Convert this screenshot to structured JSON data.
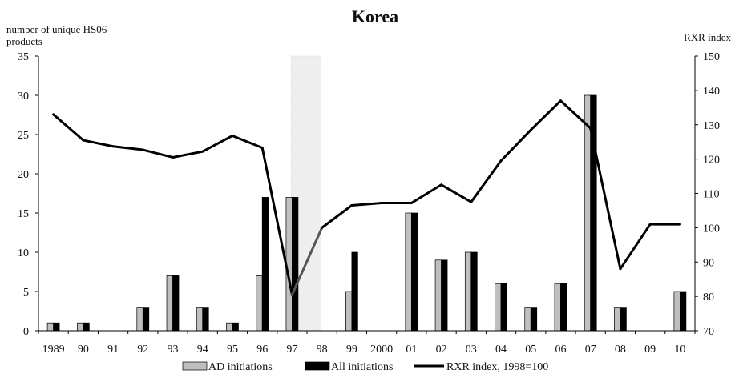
{
  "chart_data": {
    "type": "bar",
    "title": "Korea",
    "ylabel": "number of unique  HS06 products",
    "y2label": "RXR index",
    "ylim": [
      0,
      35
    ],
    "y2lim": [
      70,
      150
    ],
    "yticks": [
      "0",
      "5",
      "10",
      "15",
      "20",
      "25",
      "30",
      "35"
    ],
    "y2ticks": [
      "70",
      "80",
      "90",
      "100",
      "110",
      "120",
      "130",
      "140",
      "150"
    ],
    "categories": [
      "1989",
      "90",
      "91",
      "92",
      "93",
      "94",
      "95",
      "96",
      "97",
      "98",
      "99",
      "2000",
      "01",
      "02",
      "03",
      "04",
      "05",
      "06",
      "07",
      "08",
      "09",
      "10"
    ],
    "shaded_category": "97",
    "grid": false,
    "legend_position": "bottom",
    "series": [
      {
        "name": "AD initiations",
        "kind": "bar",
        "axis": "left",
        "color": "#bfbfbf",
        "values": [
          1,
          1,
          0,
          3,
          7,
          3,
          1,
          7,
          17,
          0,
          5,
          0,
          15,
          9,
          10,
          6,
          3,
          6,
          30,
          3,
          0,
          5
        ]
      },
      {
        "name": "All initiations",
        "kind": "bar",
        "axis": "left",
        "color": "#000000",
        "values": [
          1,
          1,
          0,
          3,
          7,
          3,
          1,
          17,
          17,
          0,
          10,
          0,
          15,
          9,
          10,
          6,
          3,
          6,
          30,
          3,
          0,
          5
        ]
      },
      {
        "name": "RXR index, 1998=100",
        "kind": "line",
        "axis": "right",
        "color": "#000000",
        "values": [
          133,
          125.5,
          123.7,
          122.7,
          120.5,
          122.2,
          126.8,
          123.3,
          80.5,
          100,
          106.5,
          107.2,
          107.2,
          112.5,
          107.5,
          119.5,
          128.5,
          137,
          129,
          88,
          101,
          101
        ]
      }
    ]
  }
}
